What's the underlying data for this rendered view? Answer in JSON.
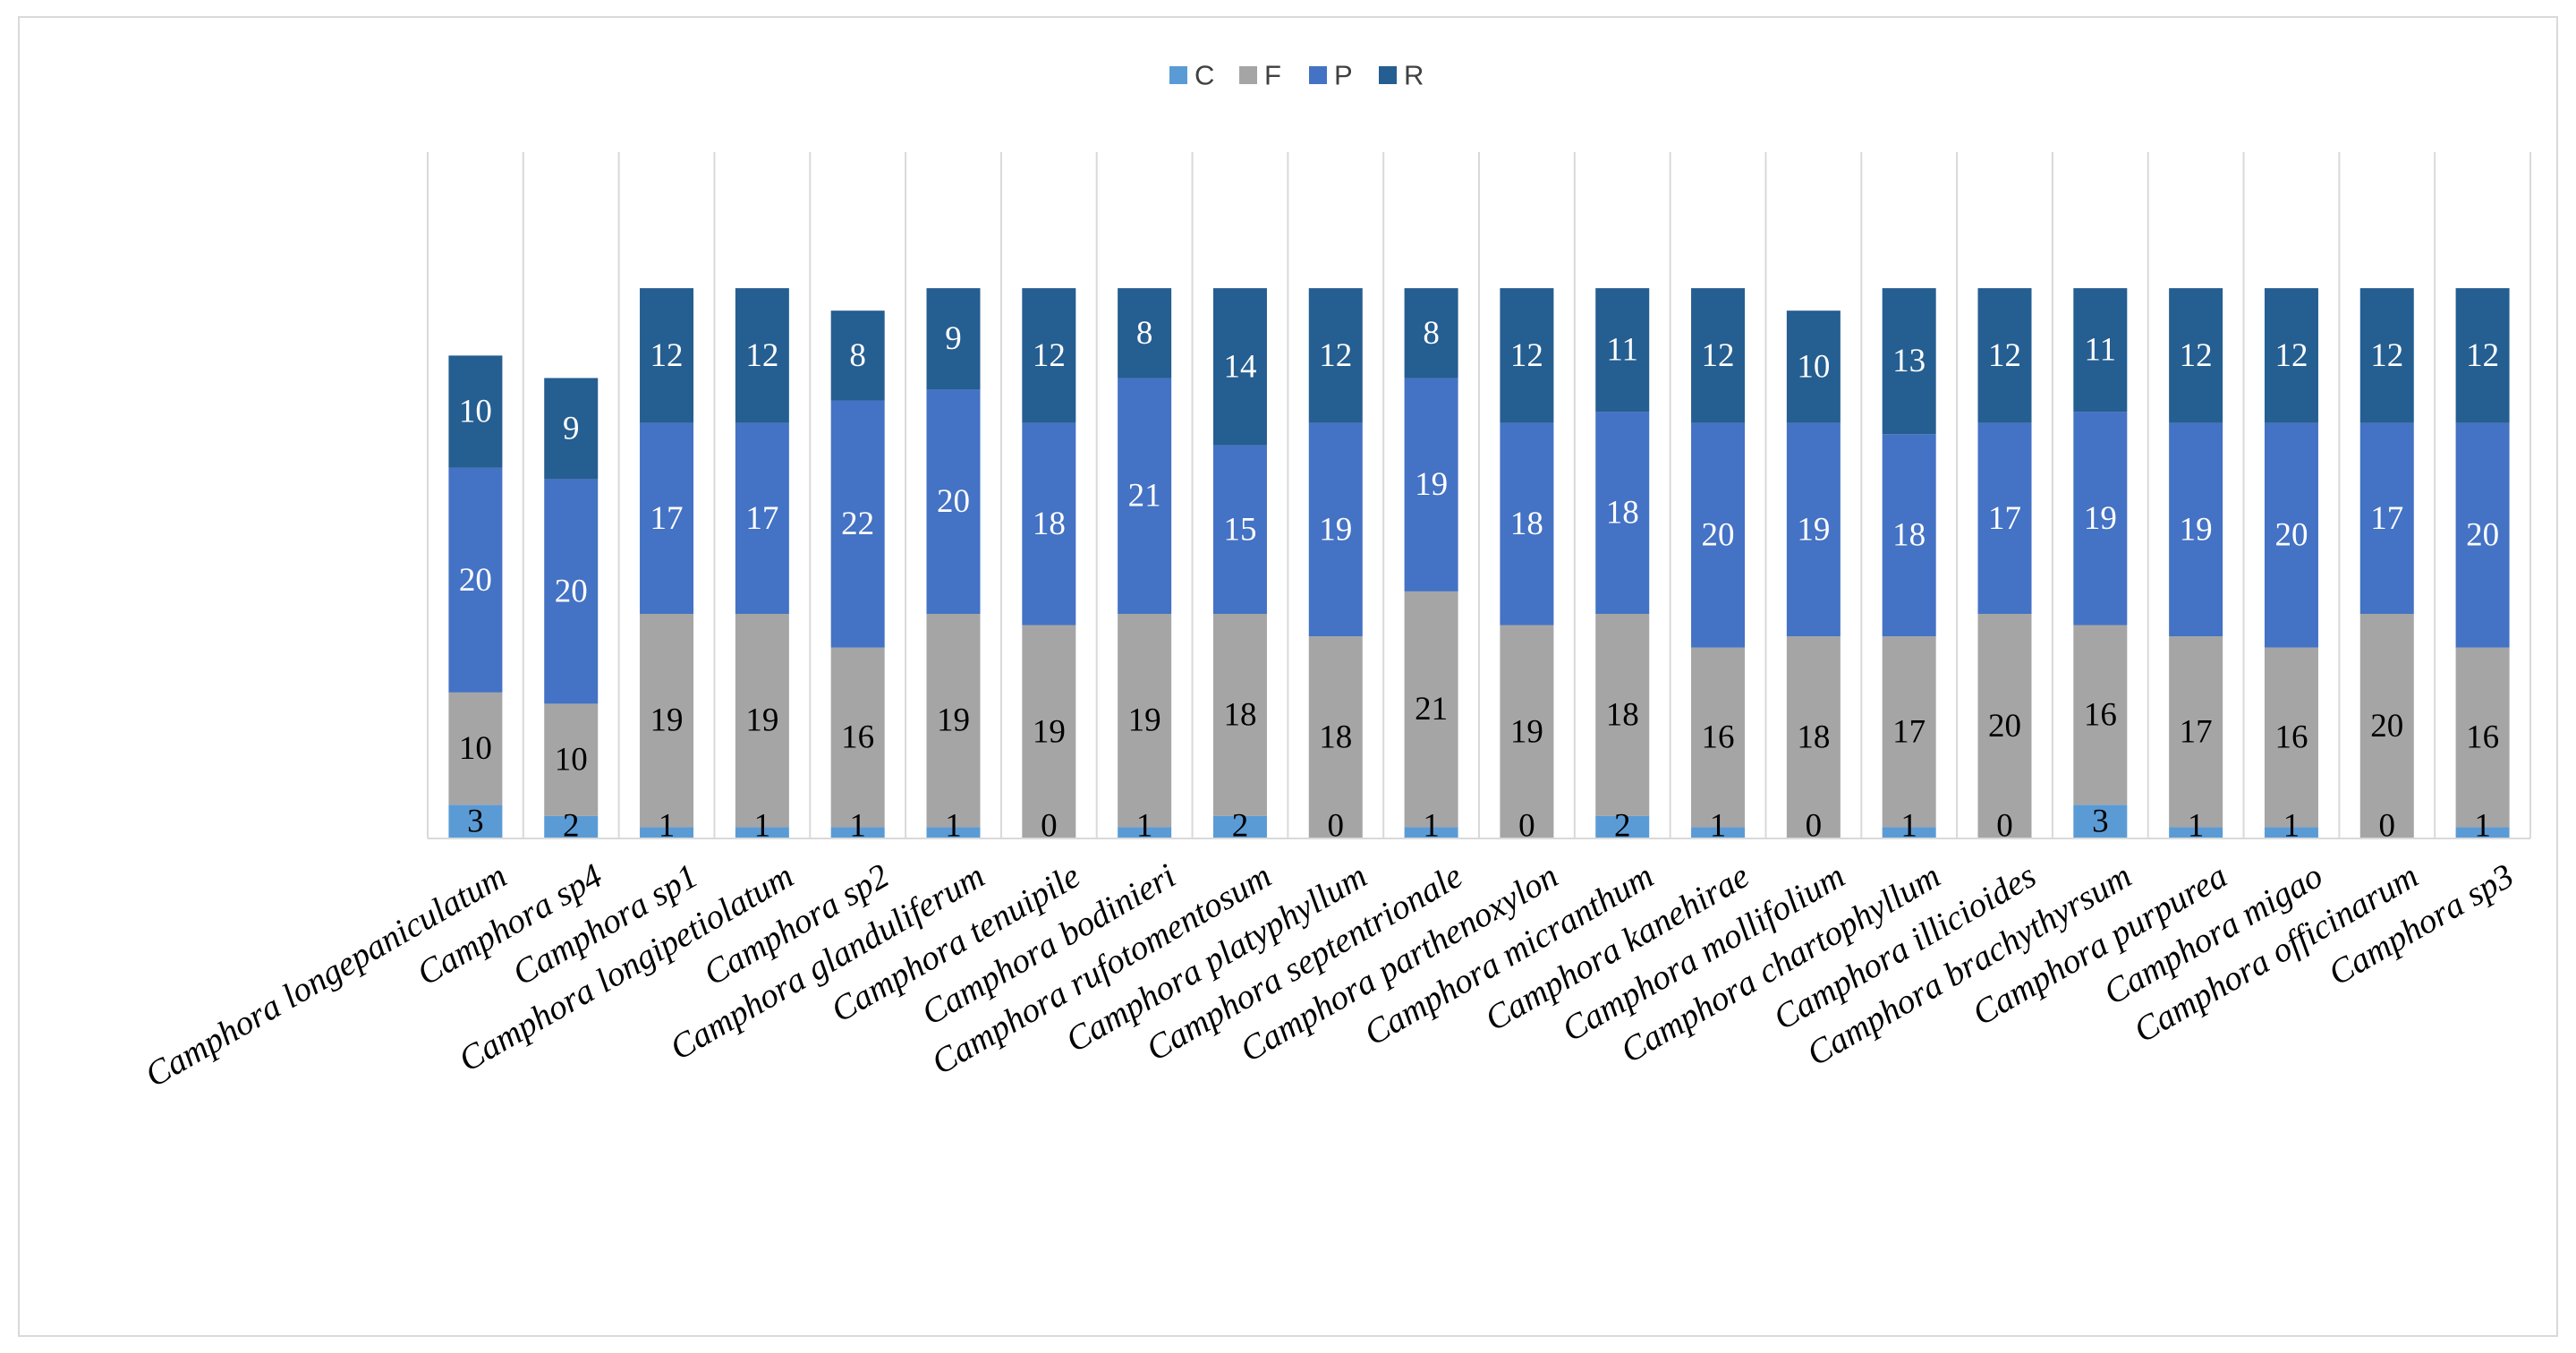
{
  "chart_data": {
    "type": "bar",
    "stacked": true,
    "title": "",
    "xlabel": "",
    "ylabel": "",
    "ylim": [
      0,
      50
    ],
    "grid": "vertical",
    "legend_position": "top",
    "categories": [
      "Camphora longepaniculatum",
      "Camphora sp4",
      "Camphora sp1",
      "Camphora longipetiolatum",
      "Camphora sp2",
      "Camphora glanduliferum",
      "Camphora tenuipile",
      "Camphora bodinieri",
      "Camphora rufotomentosum",
      "Camphora platyphyllum",
      "Camphora septentrionale",
      "Camphora parthenoxylon",
      "Camphora micranthum",
      "Camphora kanehirae",
      "Camphora mollifolium",
      "Camphora chartophyllum",
      "Camphora illicioides",
      "Camphora brachythyrsum",
      "Camphora purpurea",
      "Camphora migao",
      "Camphora officinarum",
      "Camphora sp3"
    ],
    "series": [
      {
        "name": "C",
        "color": "#5b9bd5",
        "label_color": "#000000",
        "values": [
          3,
          2,
          1,
          1,
          1,
          1,
          0,
          1,
          2,
          0,
          1,
          0,
          2,
          1,
          0,
          1,
          0,
          3,
          1,
          1,
          0,
          1
        ]
      },
      {
        "name": "F",
        "color": "#a5a5a5",
        "label_color": "#000000",
        "values": [
          10,
          10,
          19,
          19,
          16,
          19,
          19,
          19,
          18,
          18,
          21,
          19,
          18,
          16,
          18,
          17,
          20,
          16,
          17,
          16,
          20,
          16
        ]
      },
      {
        "name": "P",
        "color": "#4472c4",
        "label_color": "#ffffff",
        "values": [
          20,
          20,
          17,
          17,
          22,
          20,
          18,
          21,
          15,
          19,
          19,
          18,
          18,
          20,
          19,
          18,
          17,
          19,
          19,
          20,
          17,
          20
        ]
      },
      {
        "name": "R",
        "color": "#255e91",
        "label_color": "#ffffff",
        "values": [
          10,
          9,
          12,
          12,
          8,
          9,
          12,
          8,
          14,
          12,
          8,
          12,
          11,
          12,
          10,
          13,
          12,
          11,
          12,
          12,
          12,
          12
        ]
      }
    ]
  }
}
